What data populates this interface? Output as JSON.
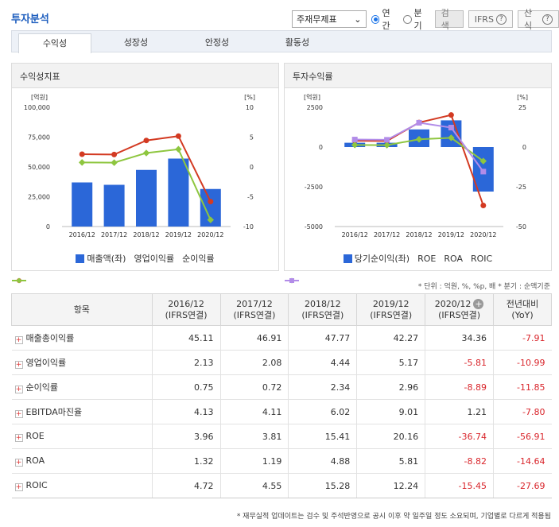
{
  "title": "투자분석",
  "controls": {
    "select_value": "주재무제표",
    "radio_annual": "연간",
    "radio_quarter": "분기",
    "search_label": "검색",
    "ifrs_label": "IFRS",
    "formula_label": "산식",
    "help_glyph": "?"
  },
  "tabs": [
    "수익성",
    "성장성",
    "안정성",
    "활동성"
  ],
  "colors": {
    "bar": "#2b67d8",
    "series1": "#d33a22",
    "series2": "#8ec63f",
    "series3": "#b28ce8"
  },
  "chart_data": [
    {
      "type": "bar+line",
      "title": "수익성지표",
      "categories": [
        "2016/12",
        "2017/12",
        "2018/12",
        "2019/12",
        "2020/12"
      ],
      "y_left": {
        "unit_label": "[억원]",
        "ticks": [
          "100,000",
          "75,000",
          "50,000",
          "25,000",
          "0"
        ],
        "range": [
          0,
          100000
        ]
      },
      "y_right": {
        "unit_label": "[%]",
        "ticks": [
          "10",
          "5",
          "0",
          "-5",
          "-10"
        ],
        "range": [
          -10,
          10
        ]
      },
      "series": [
        {
          "name": "매출액(좌)",
          "type": "bar",
          "axis": "left",
          "values": [
            37000,
            35000,
            47500,
            57000,
            31500
          ]
        },
        {
          "name": "영업이익률",
          "type": "line",
          "axis": "right",
          "values": [
            2.13,
            2.08,
            4.44,
            5.17,
            -5.81
          ]
        },
        {
          "name": "순이익률",
          "type": "line",
          "axis": "right",
          "values": [
            0.75,
            0.72,
            2.34,
            2.96,
            -8.89
          ]
        }
      ]
    },
    {
      "type": "bar+line",
      "title": "투자수익률",
      "categories": [
        "2016/12",
        "2017/12",
        "2018/12",
        "2019/12",
        "2020/12"
      ],
      "y_left": {
        "unit_label": "[억원]",
        "ticks": [
          "2500",
          "0",
          "-2500",
          "-5000"
        ],
        "range": [
          -5000,
          2500
        ]
      },
      "y_right": {
        "unit_label": "[%]",
        "ticks": [
          "25",
          "0",
          "-25",
          "-50"
        ],
        "range": [
          -50,
          25
        ]
      },
      "series": [
        {
          "name": "당기순이익(좌)",
          "type": "bar",
          "axis": "left",
          "values": [
            270,
            270,
            1110,
            1680,
            -2800
          ]
        },
        {
          "name": "ROE",
          "type": "line",
          "axis": "right",
          "values": [
            3.96,
            3.81,
            15.41,
            20.16,
            -36.74
          ]
        },
        {
          "name": "ROA",
          "type": "line",
          "axis": "right",
          "values": [
            1.32,
            1.19,
            4.88,
            5.81,
            -8.82
          ]
        },
        {
          "name": "ROIC",
          "type": "line",
          "axis": "right",
          "values": [
            4.72,
            4.55,
            15.28,
            12.24,
            -15.45
          ]
        }
      ]
    }
  ],
  "unit_note": "* 단위 : 억원, %, %p, 배   * 분기 : 순액기준",
  "table": {
    "header_item": "항목",
    "columns": [
      {
        "period": "2016/12",
        "basis": "(IFRS연결)"
      },
      {
        "period": "2017/12",
        "basis": "(IFRS연결)"
      },
      {
        "period": "2018/12",
        "basis": "(IFRS연결)"
      },
      {
        "period": "2019/12",
        "basis": "(IFRS연결)"
      },
      {
        "period": "2020/12",
        "basis": "(IFRS연결)"
      },
      {
        "period": "전년대비",
        "basis": "(YoY)"
      }
    ],
    "add_glyph": "+",
    "expand_glyph": "+",
    "rows": [
      {
        "label": "매출총이익률",
        "values": [
          "45.11",
          "46.91",
          "47.77",
          "42.27",
          "34.36",
          "-7.91"
        ]
      },
      {
        "label": "영업이익률",
        "values": [
          "2.13",
          "2.08",
          "4.44",
          "5.17",
          "-5.81",
          "-10.99"
        ]
      },
      {
        "label": "순이익률",
        "values": [
          "0.75",
          "0.72",
          "2.34",
          "2.96",
          "-8.89",
          "-11.85"
        ]
      },
      {
        "label": "EBITDA마진율",
        "values": [
          "4.13",
          "4.11",
          "6.02",
          "9.01",
          "1.21",
          "-7.80"
        ]
      },
      {
        "label": "ROE",
        "values": [
          "3.96",
          "3.81",
          "15.41",
          "20.16",
          "-36.74",
          "-56.91"
        ]
      },
      {
        "label": "ROA",
        "values": [
          "1.32",
          "1.19",
          "4.88",
          "5.81",
          "-8.82",
          "-14.64"
        ]
      },
      {
        "label": "ROIC",
        "values": [
          "4.72",
          "4.55",
          "15.28",
          "12.24",
          "-15.45",
          "-27.69"
        ]
      }
    ]
  },
  "footer_note": "* 재무실적 업데이트는 검수 및 주석반영으로 공시 이후 약 일주일 정도 소요되며, 기업별로 다르게 적용됨"
}
